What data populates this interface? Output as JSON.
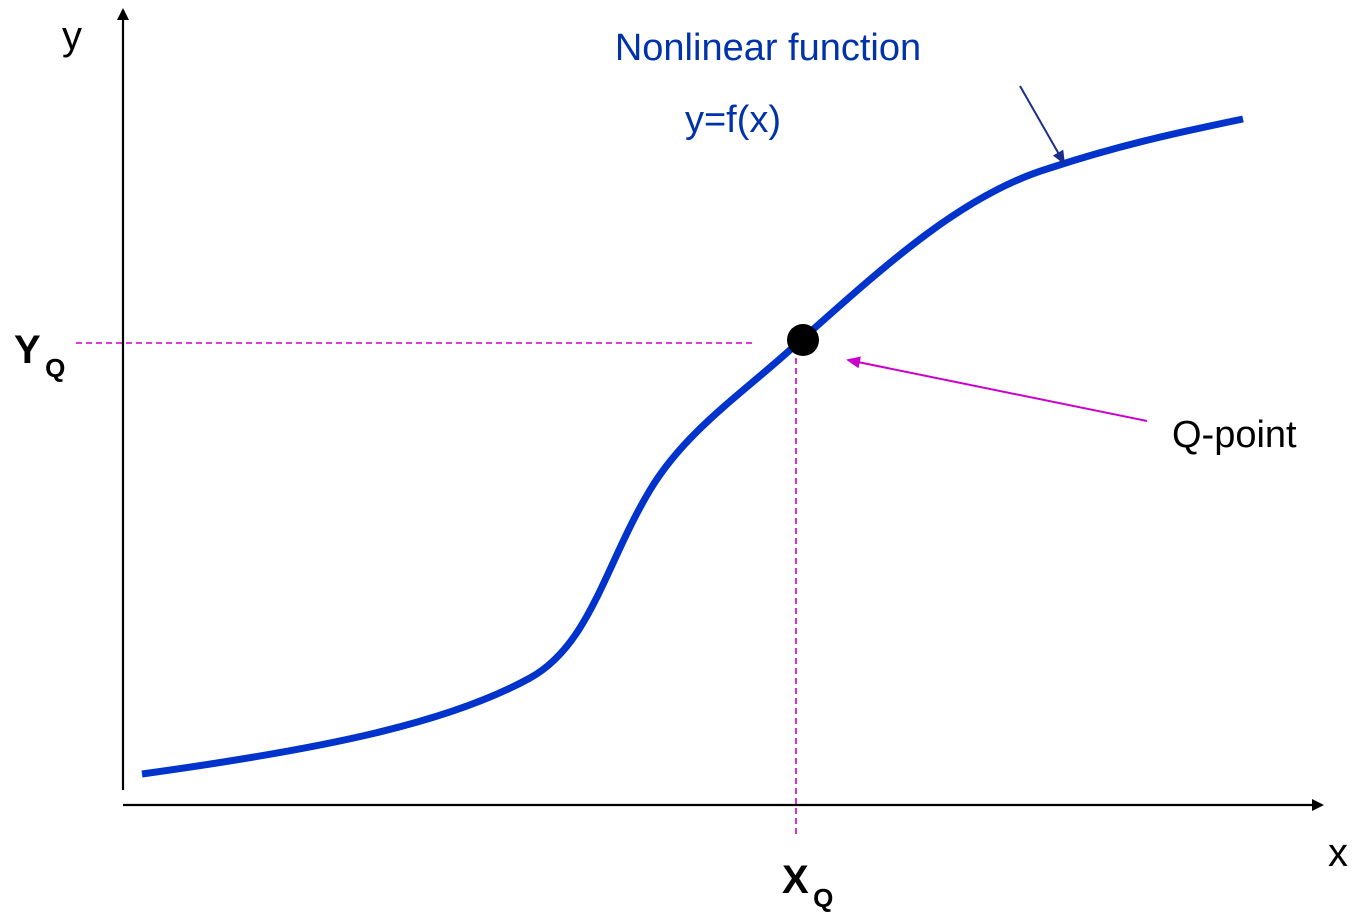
{
  "labels": {
    "y_axis": "y",
    "x_axis": "x",
    "yq_main": "Y",
    "yq_sub": "Q",
    "xq_main": "X",
    "xq_sub": "Q",
    "function_name": "Nonlinear function",
    "function_formula": "y=f(x)",
    "qpoint": "Q-point"
  },
  "colors": {
    "curve": "#0033cc",
    "function_text": "#0033aa",
    "guides": "#cc00cc",
    "qpoint_arrow": "#cc00cc",
    "function_arrow": "#1a2f8a",
    "axes": "#000000",
    "qpoint_dot": "#000000"
  }
}
